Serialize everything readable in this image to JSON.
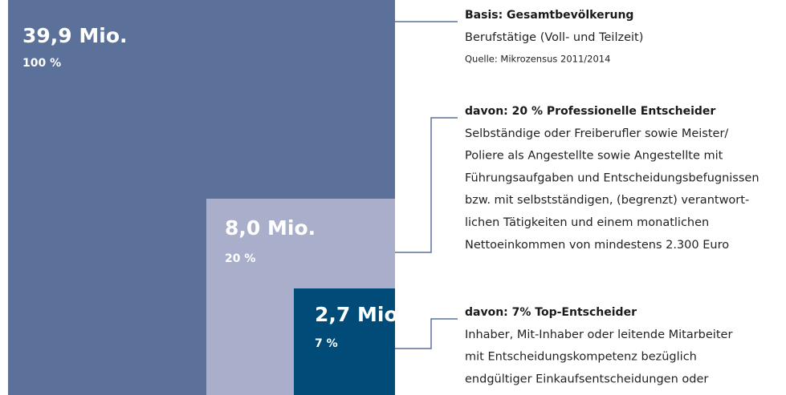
{
  "boxes": [
    {
      "value": "39,9 Mio.",
      "share": "100 %"
    },
    {
      "value": "8,0 Mio.",
      "share": "20 %"
    },
    {
      "value": "2,7 Mio.",
      "share": "7 %"
    }
  ],
  "descriptions": [
    {
      "heading": "Basis: Gesamtbevölkerung",
      "lines": [
        "Berufstätige (Voll- und Teilzeit)"
      ],
      "source": "Quelle: Mikrozensus 2011/2014"
    },
    {
      "heading": "davon: 20 % Professionelle Entscheider",
      "lines": [
        "Selbständige oder Freiberufler sowie Meister/",
        "Poliere als Angestellte sowie Angestellte mit",
        "Führungsaufgaben und Entscheidungsbefugnissen",
        "bzw. mit selbstständigen, (begrenzt) verantwort-",
        "lichen Tätigkeiten und einem monatlichen",
        "Nettoeinkommen von mindestens 2.300 Euro"
      ]
    },
    {
      "heading": "davon: 7% Top-Entscheider",
      "lines": [
        "Inhaber, Mit-Inhaber oder leitende Mitarbeiter",
        "mit Entscheidungskompetenz bezüglich",
        "endgültiger Einkaufsentscheidungen oder"
      ]
    }
  ]
}
